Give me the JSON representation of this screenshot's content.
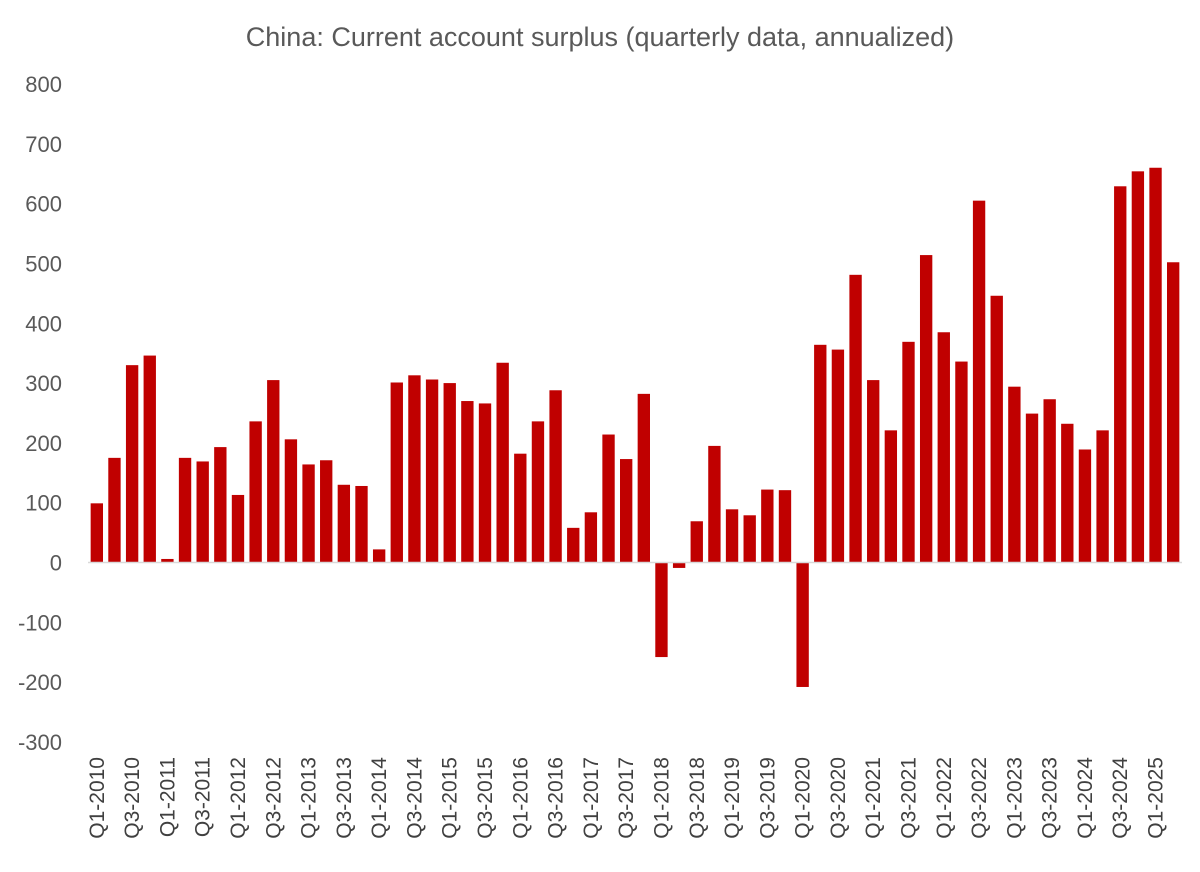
{
  "chart_data": {
    "type": "bar",
    "title": "China: Current account surplus (quarterly data, annualized)",
    "xlabel": "",
    "ylabel": "",
    "ylim": [
      -300,
      800
    ],
    "yticks": [
      800,
      700,
      600,
      500,
      400,
      300,
      200,
      100,
      0,
      -100,
      -200,
      -300
    ],
    "grid": false,
    "legend": "none",
    "bar_color": "#C00000",
    "categories": [
      "Q1-2010",
      "Q2-2010",
      "Q3-2010",
      "Q4-2010",
      "Q1-2011",
      "Q2-2011",
      "Q3-2011",
      "Q4-2011",
      "Q1-2012",
      "Q2-2012",
      "Q3-2012",
      "Q4-2012",
      "Q1-2013",
      "Q2-2013",
      "Q3-2013",
      "Q4-2013",
      "Q1-2014",
      "Q2-2014",
      "Q3-2014",
      "Q4-2014",
      "Q1-2015",
      "Q2-2015",
      "Q3-2015",
      "Q4-2015",
      "Q1-2016",
      "Q2-2016",
      "Q3-2016",
      "Q4-2016",
      "Q1-2017",
      "Q2-2017",
      "Q3-2017",
      "Q4-2017",
      "Q1-2018",
      "Q2-2018",
      "Q3-2018",
      "Q4-2018",
      "Q1-2019",
      "Q2-2019",
      "Q3-2019",
      "Q4-2019",
      "Q1-2020",
      "Q2-2020",
      "Q3-2020",
      "Q4-2020",
      "Q1-2021",
      "Q2-2021",
      "Q3-2021",
      "Q4-2021",
      "Q1-2022",
      "Q2-2022",
      "Q3-2022",
      "Q4-2022",
      "Q1-2023",
      "Q2-2023",
      "Q3-2023",
      "Q4-2023",
      "Q1-2024",
      "Q2-2024",
      "Q3-2024",
      "Q4-2024",
      "Q1-2025",
      "Q2-2025"
    ],
    "tick_labels": [
      "Q1-2010",
      "Q3-2010",
      "Q1-2011",
      "Q3-2011",
      "Q1-2012",
      "Q3-2012",
      "Q1-2013",
      "Q3-2013",
      "Q1-2014",
      "Q3-2014",
      "Q1-2015",
      "Q3-2015",
      "Q1-2016",
      "Q3-2016",
      "Q1-2017",
      "Q3-2017",
      "Q1-2018",
      "Q3-2018",
      "Q1-2019",
      "Q3-2019",
      "Q1-2020",
      "Q3-2020",
      "Q1-2021",
      "Q3-2021",
      "Q1-2022",
      "Q3-2022",
      "Q1-2023",
      "Q3-2023",
      "Q1-2024",
      "Q3-2024",
      "Q1-2025"
    ],
    "values": [
      99,
      175,
      330,
      346,
      6,
      175,
      169,
      193,
      113,
      236,
      305,
      206,
      164,
      171,
      130,
      128,
      22,
      301,
      313,
      306,
      300,
      270,
      266,
      334,
      182,
      236,
      288,
      58,
      84,
      214,
      173,
      282,
      -158,
      -9,
      69,
      195,
      89,
      79,
      122,
      121,
      -208,
      364,
      356,
      481,
      305,
      221,
      369,
      514,
      385,
      336,
      605,
      446,
      294,
      249,
      273,
      232,
      189,
      221,
      629,
      654,
      660,
      502
    ]
  }
}
